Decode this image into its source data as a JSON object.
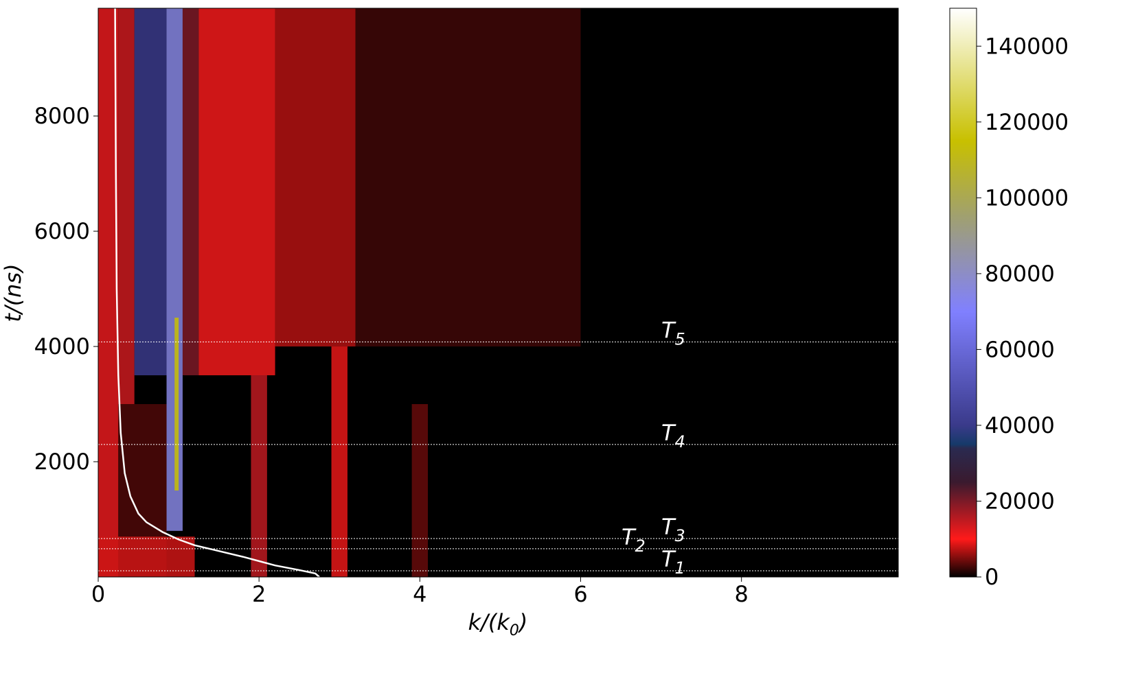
{
  "chart_data": {
    "type": "heatmap",
    "xlabel": {
      "text": "k/(k",
      "sub": "0",
      "tail": ")"
    },
    "ylabel": "t/(ns)",
    "xlim": [
      0,
      9.95
    ],
    "ylim": [
      0,
      9870
    ],
    "xticks": [
      0,
      2,
      4,
      6,
      8
    ],
    "yticks": [
      2000,
      4000,
      6000,
      8000
    ],
    "colorbar": {
      "lim": [
        0,
        150000
      ],
      "ticks": [
        0,
        20000,
        40000,
        60000,
        80000,
        100000,
        120000,
        140000
      ]
    },
    "colormap": [
      {
        "value": 0,
        "color": "#000000"
      },
      {
        "value": 10000,
        "color": "#ff1a1a"
      },
      {
        "value": 25000,
        "color": "#3a1a2e"
      },
      {
        "value": 34000,
        "color": "#2a2a50"
      },
      {
        "value": 35000,
        "color": "#163a6a"
      },
      {
        "value": 40000,
        "color": "#3a3a8a"
      },
      {
        "value": 70000,
        "color": "#8080ff"
      },
      {
        "value": 95000,
        "color": "#a0a070"
      },
      {
        "value": 115000,
        "color": "#c8c000"
      },
      {
        "value": 150000,
        "color": "#ffffff"
      }
    ],
    "cells": [
      {
        "k": [
          0,
          0.25
        ],
        "t": [
          0,
          9870
        ],
        "value": 12000
      },
      {
        "k": [
          0.25,
          0.45
        ],
        "t": [
          3000,
          9870
        ],
        "value": 14000
      },
      {
        "k": [
          0.45,
          0.85
        ],
        "t": [
          3500,
          9870
        ],
        "value": 40000
      },
      {
        "k": [
          0.85,
          1.05
        ],
        "t": [
          800,
          9870
        ],
        "value": 75000
      },
      {
        "k": [
          0.95,
          1.0
        ],
        "t": [
          1500,
          4500
        ],
        "value": 115000
      },
      {
        "k": [
          1.05,
          1.25
        ],
        "t": [
          3500,
          9870
        ],
        "value": 20000
      },
      {
        "k": [
          1.25,
          2.2
        ],
        "t": [
          3500,
          9870
        ],
        "value": 11000
      },
      {
        "k": [
          1.9,
          2.1
        ],
        "t": [
          0,
          3500
        ],
        "value": 15000
      },
      {
        "k": [
          0.25,
          0.85
        ],
        "t": [
          0,
          3000
        ],
        "value": 3000
      },
      {
        "k": [
          2.2,
          3.2
        ],
        "t": [
          4000,
          9870
        ],
        "value": 7000
      },
      {
        "k": [
          2.9,
          3.1
        ],
        "t": [
          0,
          4000
        ],
        "value": 9000
      },
      {
        "k": [
          3.2,
          6
        ],
        "t": [
          4000,
          9870
        ],
        "value": 2500
      },
      {
        "k": [
          3.9,
          4.1
        ],
        "t": [
          0,
          3000
        ],
        "value": 4000
      },
      {
        "k": [
          0,
          1.2
        ],
        "t": [
          0,
          700
        ],
        "value": 8000
      }
    ],
    "curve": {
      "color": "#ffffff",
      "k": [
        2.75,
        2.7,
        2.5,
        2.2,
        1.8,
        1.5,
        1.2,
        1.0,
        0.8,
        0.6,
        0.5,
        0.4,
        0.33,
        0.28,
        0.25,
        0.23,
        0.22,
        0.21
      ],
      "t": [
        0,
        60,
        120,
        200,
        350,
        450,
        550,
        650,
        780,
        950,
        1100,
        1400,
        1800,
        2500,
        3500,
        5000,
        7000,
        9870
      ]
    },
    "annotations": [
      {
        "label": "T",
        "sub": "1",
        "t": 107
      },
      {
        "label": "T",
        "sub": "2",
        "t": 490
      },
      {
        "label": "T",
        "sub": "3",
        "t": 667
      },
      {
        "label": "T",
        "sub": "4",
        "t": 2300
      },
      {
        "label": "T",
        "sub": "5",
        "t": 4080
      }
    ]
  }
}
